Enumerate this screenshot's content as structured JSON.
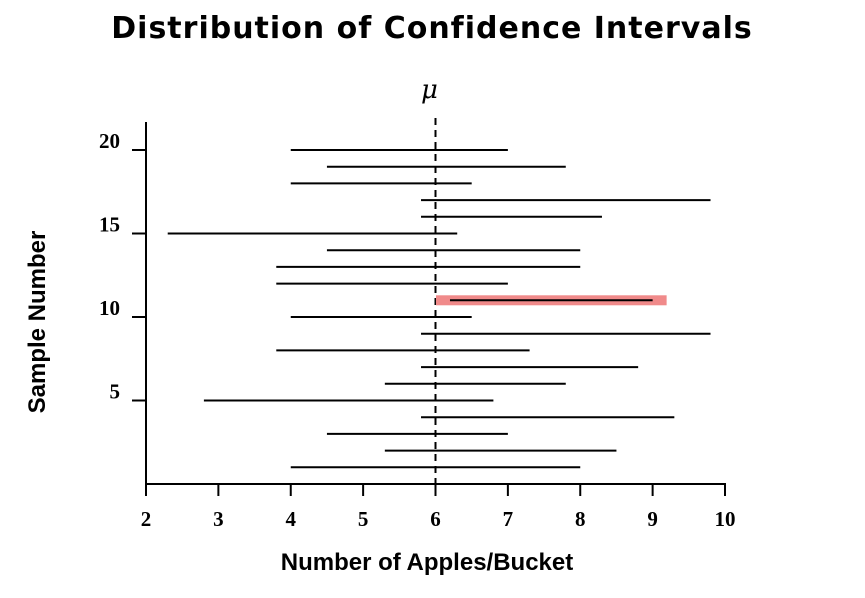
{
  "chart_data": {
    "type": "interval",
    "title": "Distribution of Confidence Intervals",
    "xlabel": "Number of Apples/Bucket",
    "ylabel": "Sample Number",
    "xlim": [
      2,
      10
    ],
    "ylim": [
      0,
      20
    ],
    "x_ticks": [
      2,
      3,
      4,
      5,
      6,
      7,
      8,
      9,
      10
    ],
    "y_ticks": [
      5,
      10,
      15,
      20
    ],
    "mu": {
      "label": "μ",
      "value": 6
    },
    "highlight_color": "#f08a8a",
    "line_color": "#000000",
    "intervals": [
      {
        "sample": 1,
        "low": 4.0,
        "high": 8.0
      },
      {
        "sample": 2,
        "low": 5.3,
        "high": 8.5
      },
      {
        "sample": 3,
        "low": 4.5,
        "high": 7.0
      },
      {
        "sample": 4,
        "low": 5.8,
        "high": 9.3
      },
      {
        "sample": 5,
        "low": 2.8,
        "high": 6.8
      },
      {
        "sample": 6,
        "low": 5.3,
        "high": 7.8
      },
      {
        "sample": 7,
        "low": 5.8,
        "high": 8.8
      },
      {
        "sample": 8,
        "low": 3.8,
        "high": 7.3
      },
      {
        "sample": 9,
        "low": 5.8,
        "high": 9.8
      },
      {
        "sample": 10,
        "low": 4.0,
        "high": 6.5
      },
      {
        "sample": 11,
        "low": 6.2,
        "high": 9.0,
        "highlight": true
      },
      {
        "sample": 12,
        "low": 3.8,
        "high": 7.0
      },
      {
        "sample": 13,
        "low": 3.8,
        "high": 8.0
      },
      {
        "sample": 14,
        "low": 4.5,
        "high": 8.0
      },
      {
        "sample": 15,
        "low": 2.3,
        "high": 6.3
      },
      {
        "sample": 16,
        "low": 5.8,
        "high": 8.3
      },
      {
        "sample": 17,
        "low": 5.8,
        "high": 9.8
      },
      {
        "sample": 18,
        "low": 4.0,
        "high": 6.5
      },
      {
        "sample": 19,
        "low": 4.5,
        "high": 7.8
      },
      {
        "sample": 20,
        "low": 4.0,
        "high": 7.0
      }
    ]
  }
}
